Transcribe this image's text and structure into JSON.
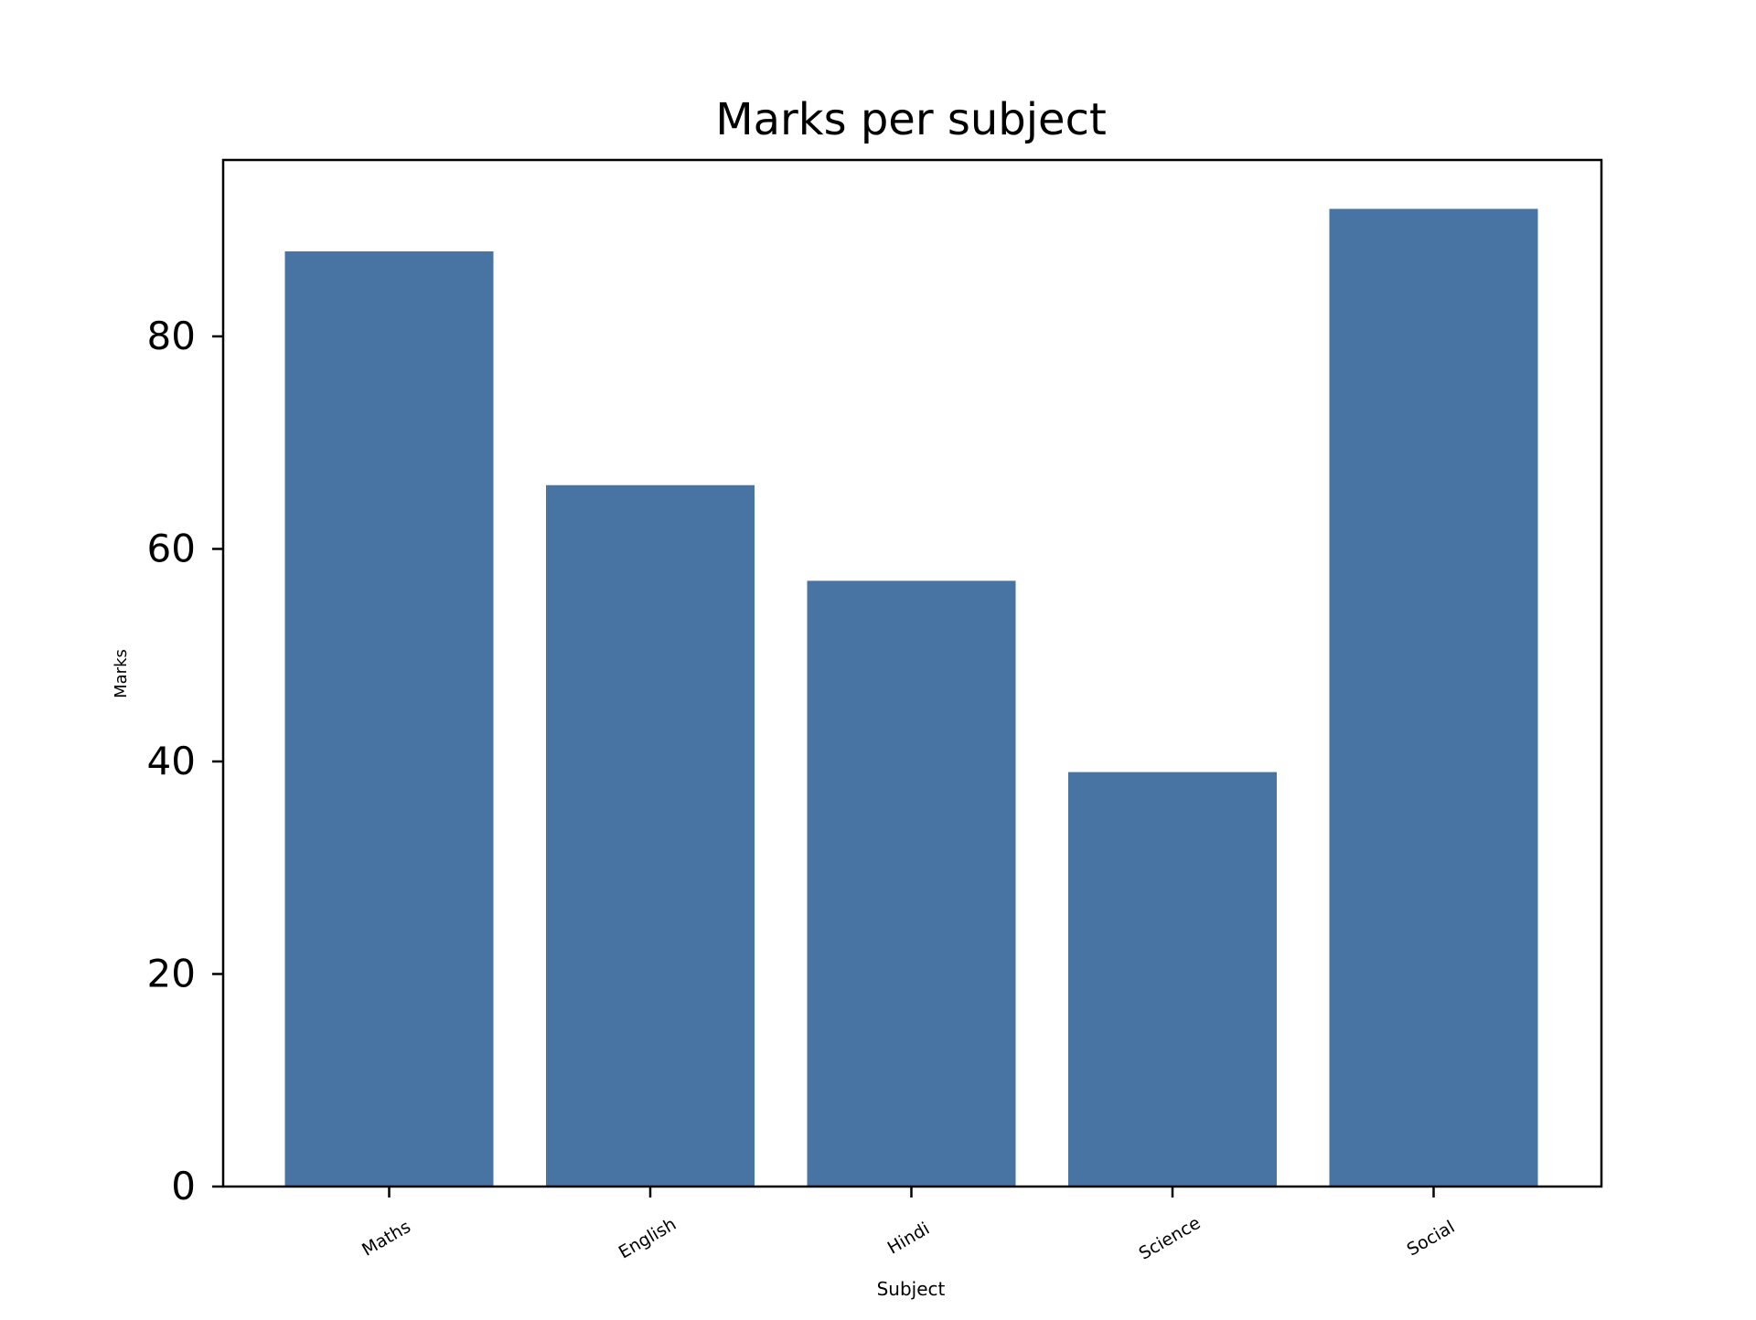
{
  "chart_data": {
    "type": "bar",
    "title": "Marks per subject",
    "xlabel": "Subject",
    "ylabel": "Marks",
    "categories": [
      "Maths",
      "English",
      "Hindi",
      "Science",
      "Social"
    ],
    "values": [
      88,
      66,
      57,
      39,
      92
    ],
    "ylim": [
      0,
      96.6
    ],
    "yticks": [
      0,
      20,
      40,
      60,
      80
    ],
    "bar_color": "#4774a2",
    "grid": false,
    "legend": "none"
  }
}
